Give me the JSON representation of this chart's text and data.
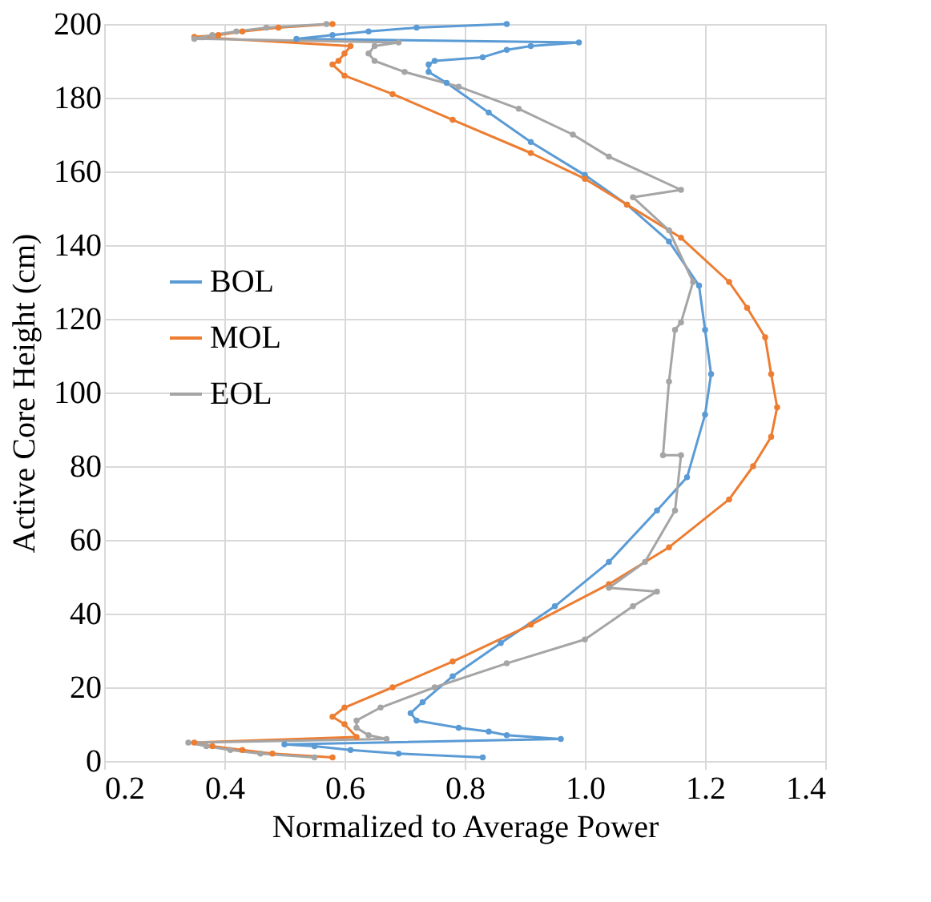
{
  "chart_data": {
    "type": "line",
    "xlabel": "Normalized to Average Power",
    "ylabel": "Active Core Height (cm)",
    "xlim": [
      0.2,
      1.4
    ],
    "xticks": [
      {
        "value": 0.2,
        "label": "0.2"
      },
      {
        "value": 0.4,
        "label": "0.4"
      },
      {
        "value": 0.6,
        "label": "0.6"
      },
      {
        "value": 0.8,
        "label": "0.8"
      },
      {
        "value": 1.0,
        "label": "1.0"
      },
      {
        "value": 1.2,
        "label": "1.2"
      },
      {
        "value": 1.4,
        "label": "1.4"
      }
    ],
    "ylim": [
      0,
      200
    ],
    "yticks": [
      0,
      20,
      40,
      60,
      80,
      100,
      120,
      140,
      160,
      180,
      200
    ],
    "grid": true,
    "legend": "left",
    "marker": "circle",
    "line_style": "solid",
    "series": [
      {
        "name": "BOL",
        "color": "#5b9bd5",
        "x": [
          0.83,
          0.69,
          0.61,
          0.55,
          0.5,
          0.96,
          0.87,
          0.84,
          0.79,
          0.72,
          0.71,
          0.73,
          0.78,
          0.86,
          0.95,
          1.04,
          1.12,
          1.17,
          1.2,
          1.21,
          1.2,
          1.19,
          1.14,
          1.07,
          1.0,
          0.91,
          0.84,
          0.77,
          0.74,
          0.74,
          0.75,
          0.83,
          0.87,
          0.91,
          0.99,
          0.52,
          0.58,
          0.64,
          0.72,
          0.87
        ],
        "values": [
          1,
          2,
          3,
          4,
          4.5,
          6,
          7,
          8,
          9,
          11,
          13,
          16,
          23,
          32,
          42,
          54,
          68,
          77,
          94,
          105,
          117,
          129,
          141,
          151,
          159,
          168,
          176,
          184,
          187,
          189,
          190,
          191,
          193,
          194,
          195,
          196,
          197,
          198,
          199,
          200
        ]
      },
      {
        "name": "MOL",
        "color": "#ed7d31",
        "x": [
          0.58,
          0.48,
          0.43,
          0.38,
          0.35,
          0.62,
          0.6,
          0.58,
          0.6,
          0.68,
          0.78,
          0.91,
          1.04,
          1.14,
          1.24,
          1.28,
          1.31,
          1.32,
          1.31,
          1.3,
          1.27,
          1.24,
          1.16,
          1.07,
          1.0,
          0.91,
          0.78,
          0.68,
          0.6,
          0.58,
          0.59,
          0.6,
          0.61,
          0.35,
          0.39,
          0.43,
          0.49,
          0.58
        ],
        "values": [
          1,
          2,
          3,
          4,
          5,
          6.5,
          10,
          12,
          14.5,
          20,
          27,
          37,
          48,
          58,
          71,
          80,
          88,
          96,
          105,
          115,
          123,
          130,
          142,
          151,
          158,
          165,
          174,
          181,
          186,
          189,
          190,
          192,
          194,
          196.5,
          197,
          198,
          199,
          200
        ]
      },
      {
        "name": "EOL",
        "color": "#a5a5a5",
        "x": [
          0.55,
          0.46,
          0.41,
          0.37,
          0.34,
          0.67,
          0.64,
          0.62,
          0.62,
          0.66,
          0.75,
          0.87,
          1.0,
          1.08,
          1.12,
          1.04,
          1.1,
          1.15,
          1.16,
          1.13,
          1.14,
          1.15,
          1.16,
          1.18,
          1.14,
          1.08,
          1.16,
          1.04,
          0.98,
          0.89,
          0.79,
          0.7,
          0.65,
          0.64,
          0.65,
          0.69,
          0.35,
          0.38,
          0.42,
          0.47,
          0.57
        ],
        "values": [
          1,
          2,
          3,
          4,
          5,
          6,
          7,
          9,
          11,
          14.5,
          20,
          26.5,
          33,
          42,
          46,
          47,
          54,
          68,
          83,
          83,
          103,
          117,
          119,
          130,
          144,
          153,
          155,
          164,
          170,
          177,
          183,
          187,
          190,
          192,
          194,
          195,
          196,
          197,
          198,
          199,
          200
        ]
      }
    ]
  }
}
